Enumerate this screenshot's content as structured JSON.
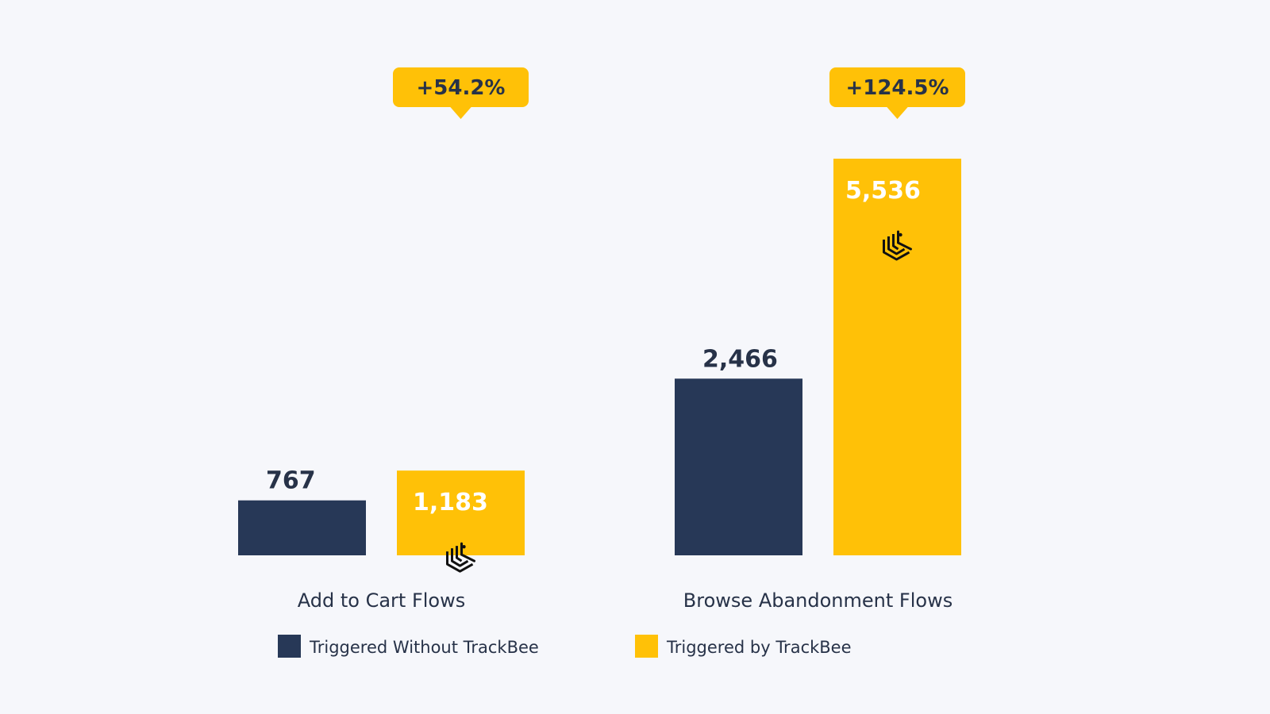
{
  "chart_data": {
    "type": "bar",
    "title": "",
    "xlabel": "",
    "ylabel": "",
    "ylim": [
      0,
      5536
    ],
    "categories": [
      "Add to Cart Flows",
      "Browse Abandonment Flows"
    ],
    "series": [
      {
        "name": "Triggered Without TrackBee",
        "values": [
          767,
          2466
        ],
        "value_labels": [
          "767",
          "2,466"
        ],
        "color": "#273857"
      },
      {
        "name": "Triggered by TrackBee",
        "values": [
          1183,
          5536
        ],
        "value_labels": [
          "1,183",
          "5,536"
        ],
        "color": "#FFC107"
      }
    ],
    "annotations": [
      "+54.2%",
      "+124.5%"
    ],
    "legend_position": "bottom-center",
    "grid": false
  },
  "colors": {
    "background": "#F6F7FB",
    "text_dark": "#273248",
    "label_light": "#FFFFFF",
    "icon": "#111111"
  },
  "icons": {
    "brand_mark": "trackbee-logo-icon"
  }
}
